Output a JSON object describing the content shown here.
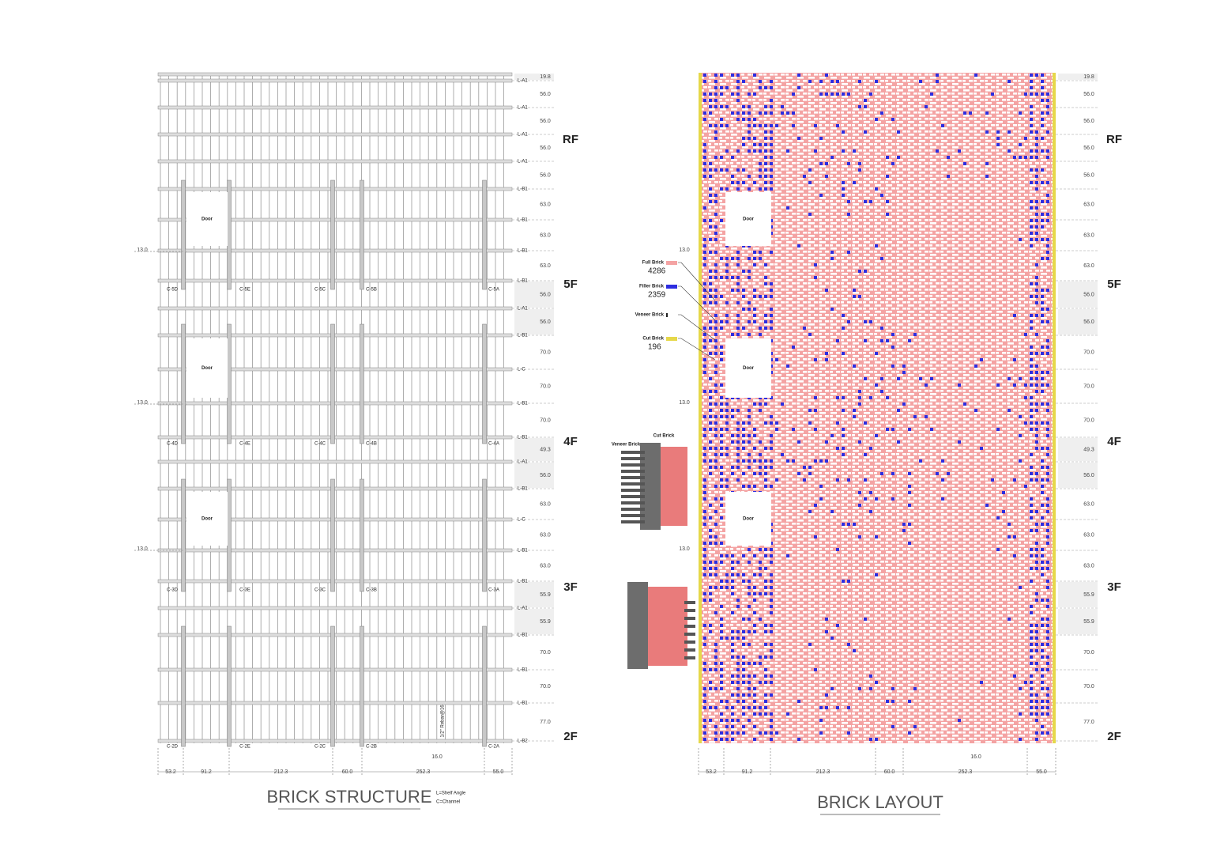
{
  "floors": [
    "RF",
    "5F",
    "4F",
    "3F",
    "2F"
  ],
  "heights": [
    "19.8",
    "56.0",
    "56.0",
    "56.0",
    "56.0",
    "63.0",
    "63.0",
    "63.0",
    "56.0",
    "56.0",
    "70.0",
    "70.0",
    "70.0",
    "49.3",
    "56.0",
    "63.0",
    "63.0",
    "63.0",
    "55.9",
    "55.9",
    "70.0",
    "70.0",
    "77.0"
  ],
  "widths": [
    "53.2",
    "91.2",
    "212.3",
    "60.0",
    "252.3",
    "55.0"
  ],
  "side_dims": [
    "13.0",
    "13.0",
    "13.0"
  ],
  "spacing_dim": "16.0",
  "doors": [
    "Door",
    "Door",
    "Door"
  ],
  "structure": {
    "title": "BRICK STRUCTURE",
    "legend": [
      "L=Shelf Angle",
      "C=Channel"
    ],
    "levels": [
      "L-A1",
      "L-A1",
      "L-A1",
      "L-A1",
      "L-B1",
      "L-B1",
      "L-B1",
      "L-B1",
      "L-A1",
      "L-B1",
      "L-C",
      "L-B1",
      "L-B1",
      "L-A1",
      "L-B1",
      "L-C",
      "L-B1",
      "L-B1",
      "L-A1",
      "L-B1",
      "L-B1",
      "L-B1",
      "L-B2"
    ],
    "channels": [
      [
        "C-5D",
        "C-5E",
        "C-5C",
        "C-5B",
        "C-5A"
      ],
      [
        "C-4D",
        "C-4E",
        "C-4C",
        "C-4B",
        "C-4A"
      ],
      [
        "C-3D",
        "C-3E",
        "C-3C",
        "C-3B",
        "C-3A"
      ],
      [
        "C-2D",
        "C-2E",
        "C-2C",
        "C-2B",
        "C-2A"
      ]
    ],
    "rebar": "1/2\" Rebar@16"
  },
  "layout": {
    "title": "BRICK LAYOUT",
    "legend": [
      {
        "name": "Full Brick",
        "count": "4286"
      },
      {
        "name": "Filler Brick",
        "count": "2359"
      },
      {
        "name": "Veneer Brick"
      },
      {
        "name": "Cut Brick",
        "count": "196"
      }
    ],
    "callouts": [
      "Veneer Brick",
      "Cut Brick"
    ]
  }
}
